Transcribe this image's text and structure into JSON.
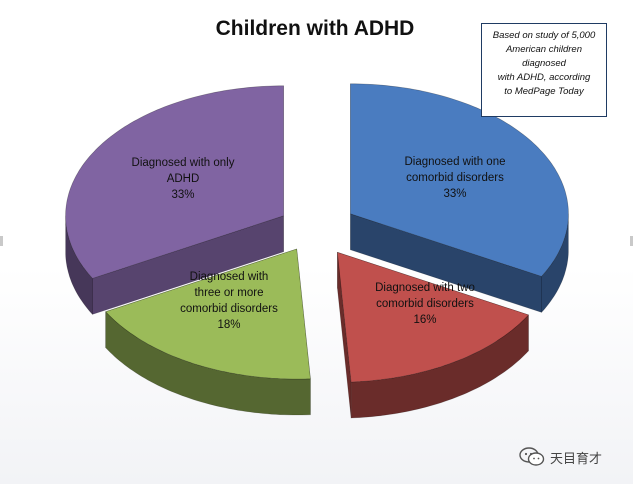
{
  "chart_data": {
    "type": "pie",
    "style": "3d-exploded",
    "title": "Children with ADHD",
    "note_lines": [
      "Based on study of 5,000",
      "American children",
      "diagnosed",
      "with ADHD,  according",
      "to MedPage Today"
    ],
    "slices": [
      {
        "label_lines": [
          "Diagnosed with one",
          "comorbid disorders"
        ],
        "percent_label": "33%",
        "value": 33,
        "color": "#4a7cc0"
      },
      {
        "label_lines": [
          "Diagnosed with two",
          "comorbid disorders"
        ],
        "percent_label": "16%",
        "value": 16,
        "color": "#c0504d"
      },
      {
        "label_lines": [
          "Diagnosed with",
          "three or more",
          "comorbid disorders"
        ],
        "percent_label": "18%",
        "value": 18,
        "color": "#9bbb59"
      },
      {
        "label_lines": [
          "Diagnosed with only",
          "ADHD"
        ],
        "percent_label": "33%",
        "value": 33,
        "color": "#8064a2"
      }
    ]
  },
  "watermark": {
    "icon": "wechat-icon",
    "text": "天目育才"
  }
}
